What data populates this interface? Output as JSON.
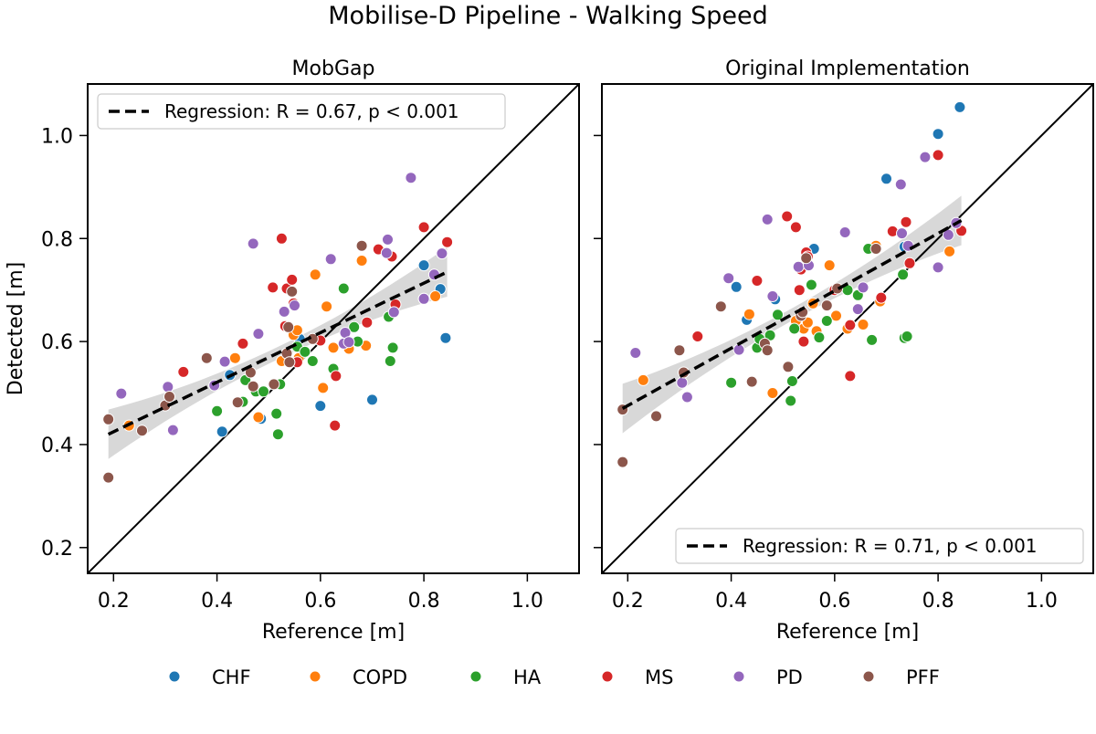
{
  "figure": {
    "title": "Mobilise-D Pipeline - Walking Speed"
  },
  "colors": {
    "CHF": "#1f77b4",
    "COPD": "#ff7f0e",
    "HA": "#2ca02c",
    "MS": "#d62728",
    "PD": "#9467bd",
    "PFF": "#8c564b"
  },
  "legend": {
    "placement": "bottom-center",
    "groups": [
      "CHF",
      "COPD",
      "HA",
      "MS",
      "PD",
      "PFF"
    ]
  },
  "chart_data": [
    {
      "type": "scatter",
      "title": "MobGap",
      "xlabel": "Reference [m]",
      "ylabel": "Detected [m]",
      "xlim": [
        0.15,
        1.1
      ],
      "ylim": [
        0.15,
        1.1
      ],
      "xticks": [
        "0.2",
        "0.4",
        "0.6",
        "0.8",
        "1.0"
      ],
      "yticks": [
        "0.2",
        "0.4",
        "0.6",
        "0.8",
        "1.0"
      ],
      "identity_line": true,
      "legend_placement": "top-left",
      "regression": {
        "label": "Regression: R = 0.67, p < 0.001",
        "x0": 0.19,
        "y0": 0.42,
        "x1": 0.845,
        "y1": 0.735
      },
      "points": [
        {
          "g": "CHF",
          "x": 0.41,
          "y": 0.425
        },
        {
          "g": "CHF",
          "x": 0.425,
          "y": 0.535
        },
        {
          "g": "CHF",
          "x": 0.485,
          "y": 0.45
        },
        {
          "g": "CHF",
          "x": 0.56,
          "y": 0.605
        },
        {
          "g": "CHF",
          "x": 0.6,
          "y": 0.475
        },
        {
          "g": "CHF",
          "x": 0.7,
          "y": 0.487
        },
        {
          "g": "CHF",
          "x": 0.8,
          "y": 0.748
        },
        {
          "g": "CHF",
          "x": 0.832,
          "y": 0.702
        },
        {
          "g": "CHF",
          "x": 0.842,
          "y": 0.607
        },
        {
          "g": "COPD",
          "x": 0.23,
          "y": 0.437
        },
        {
          "g": "COPD",
          "x": 0.435,
          "y": 0.568
        },
        {
          "g": "COPD",
          "x": 0.48,
          "y": 0.453
        },
        {
          "g": "COPD",
          "x": 0.525,
          "y": 0.562
        },
        {
          "g": "COPD",
          "x": 0.548,
          "y": 0.613
        },
        {
          "g": "COPD",
          "x": 0.555,
          "y": 0.622
        },
        {
          "g": "COPD",
          "x": 0.558,
          "y": 0.568
        },
        {
          "g": "COPD",
          "x": 0.59,
          "y": 0.73
        },
        {
          "g": "COPD",
          "x": 0.605,
          "y": 0.51
        },
        {
          "g": "COPD",
          "x": 0.612,
          "y": 0.668
        },
        {
          "g": "COPD",
          "x": 0.625,
          "y": 0.588
        },
        {
          "g": "COPD",
          "x": 0.655,
          "y": 0.586
        },
        {
          "g": "COPD",
          "x": 0.68,
          "y": 0.757
        },
        {
          "g": "COPD",
          "x": 0.688,
          "y": 0.592
        },
        {
          "g": "COPD",
          "x": 0.8,
          "y": 0.683
        },
        {
          "g": "COPD",
          "x": 0.822,
          "y": 0.688
        },
        {
          "g": "HA",
          "x": 0.4,
          "y": 0.465
        },
        {
          "g": "HA",
          "x": 0.45,
          "y": 0.483
        },
        {
          "g": "HA",
          "x": 0.455,
          "y": 0.525
        },
        {
          "g": "HA",
          "x": 0.475,
          "y": 0.503
        },
        {
          "g": "HA",
          "x": 0.49,
          "y": 0.503
        },
        {
          "g": "HA",
          "x": 0.515,
          "y": 0.46
        },
        {
          "g": "HA",
          "x": 0.518,
          "y": 0.42
        },
        {
          "g": "HA",
          "x": 0.522,
          "y": 0.517
        },
        {
          "g": "HA",
          "x": 0.555,
          "y": 0.59
        },
        {
          "g": "HA",
          "x": 0.57,
          "y": 0.58
        },
        {
          "g": "HA",
          "x": 0.585,
          "y": 0.562
        },
        {
          "g": "HA",
          "x": 0.625,
          "y": 0.547
        },
        {
          "g": "HA",
          "x": 0.645,
          "y": 0.703
        },
        {
          "g": "HA",
          "x": 0.665,
          "y": 0.628
        },
        {
          "g": "HA",
          "x": 0.672,
          "y": 0.6
        },
        {
          "g": "HA",
          "x": 0.732,
          "y": 0.648
        },
        {
          "g": "HA",
          "x": 0.735,
          "y": 0.562
        },
        {
          "g": "HA",
          "x": 0.74,
          "y": 0.588
        },
        {
          "g": "MS",
          "x": 0.335,
          "y": 0.541
        },
        {
          "g": "MS",
          "x": 0.45,
          "y": 0.596
        },
        {
          "g": "MS",
          "x": 0.508,
          "y": 0.705
        },
        {
          "g": "MS",
          "x": 0.525,
          "y": 0.8
        },
        {
          "g": "MS",
          "x": 0.532,
          "y": 0.63
        },
        {
          "g": "MS",
          "x": 0.535,
          "y": 0.703
        },
        {
          "g": "MS",
          "x": 0.545,
          "y": 0.72
        },
        {
          "g": "MS",
          "x": 0.548,
          "y": 0.674
        },
        {
          "g": "MS",
          "x": 0.555,
          "y": 0.56
        },
        {
          "g": "MS",
          "x": 0.6,
          "y": 0.602
        },
        {
          "g": "MS",
          "x": 0.63,
          "y": 0.533
        },
        {
          "g": "MS",
          "x": 0.628,
          "y": 0.437
        },
        {
          "g": "MS",
          "x": 0.69,
          "y": 0.637
        },
        {
          "g": "MS",
          "x": 0.712,
          "y": 0.779
        },
        {
          "g": "MS",
          "x": 0.738,
          "y": 0.765
        },
        {
          "g": "MS",
          "x": 0.745,
          "y": 0.672
        },
        {
          "g": "MS",
          "x": 0.8,
          "y": 0.822
        },
        {
          "g": "MS",
          "x": 0.845,
          "y": 0.793
        },
        {
          "g": "PD",
          "x": 0.215,
          "y": 0.499
        },
        {
          "g": "PD",
          "x": 0.305,
          "y": 0.512
        },
        {
          "g": "PD",
          "x": 0.315,
          "y": 0.428
        },
        {
          "g": "PD",
          "x": 0.395,
          "y": 0.515
        },
        {
          "g": "PD",
          "x": 0.415,
          "y": 0.561
        },
        {
          "g": "PD",
          "x": 0.47,
          "y": 0.79
        },
        {
          "g": "PD",
          "x": 0.48,
          "y": 0.615
        },
        {
          "g": "PD",
          "x": 0.53,
          "y": 0.658
        },
        {
          "g": "PD",
          "x": 0.55,
          "y": 0.67
        },
        {
          "g": "PD",
          "x": 0.62,
          "y": 0.76
        },
        {
          "g": "PD",
          "x": 0.645,
          "y": 0.596
        },
        {
          "g": "PD",
          "x": 0.648,
          "y": 0.617
        },
        {
          "g": "PD",
          "x": 0.655,
          "y": 0.599
        },
        {
          "g": "PD",
          "x": 0.728,
          "y": 0.772
        },
        {
          "g": "PD",
          "x": 0.73,
          "y": 0.798
        },
        {
          "g": "PD",
          "x": 0.742,
          "y": 0.657
        },
        {
          "g": "PD",
          "x": 0.775,
          "y": 0.918
        },
        {
          "g": "PD",
          "x": 0.8,
          "y": 0.683
        },
        {
          "g": "PD",
          "x": 0.82,
          "y": 0.73
        },
        {
          "g": "PD",
          "x": 0.835,
          "y": 0.771
        },
        {
          "g": "PFF",
          "x": 0.19,
          "y": 0.449
        },
        {
          "g": "PFF",
          "x": 0.19,
          "y": 0.336
        },
        {
          "g": "PFF",
          "x": 0.255,
          "y": 0.427
        },
        {
          "g": "PFF",
          "x": 0.3,
          "y": 0.476
        },
        {
          "g": "PFF",
          "x": 0.308,
          "y": 0.493
        },
        {
          "g": "PFF",
          "x": 0.38,
          "y": 0.568
        },
        {
          "g": "PFF",
          "x": 0.44,
          "y": 0.482
        },
        {
          "g": "PFF",
          "x": 0.465,
          "y": 0.54
        },
        {
          "g": "PFF",
          "x": 0.47,
          "y": 0.513
        },
        {
          "g": "PFF",
          "x": 0.51,
          "y": 0.517
        },
        {
          "g": "PFF",
          "x": 0.535,
          "y": 0.577
        },
        {
          "g": "PFF",
          "x": 0.538,
          "y": 0.628
        },
        {
          "g": "PFF",
          "x": 0.54,
          "y": 0.56
        },
        {
          "g": "PFF",
          "x": 0.545,
          "y": 0.697
        },
        {
          "g": "PFF",
          "x": 0.585,
          "y": 0.605
        },
        {
          "g": "PFF",
          "x": 0.68,
          "y": 0.786
        }
      ]
    },
    {
      "type": "scatter",
      "title": "Original Implementation",
      "xlabel": "Reference [m]",
      "ylabel": "",
      "xlim": [
        0.15,
        1.1
      ],
      "ylim": [
        0.15,
        1.1
      ],
      "xticks": [
        "0.2",
        "0.4",
        "0.6",
        "0.8",
        "1.0"
      ],
      "yticks": [],
      "identity_line": true,
      "legend_placement": "bottom-right",
      "regression": {
        "label": "Regression: R = 0.71, p < 0.001",
        "x0": 0.19,
        "y0": 0.47,
        "x1": 0.845,
        "y1": 0.835
      },
      "points": [
        {
          "g": "CHF",
          "x": 0.41,
          "y": 0.706
        },
        {
          "g": "CHF",
          "x": 0.43,
          "y": 0.642
        },
        {
          "g": "CHF",
          "x": 0.485,
          "y": 0.682
        },
        {
          "g": "CHF",
          "x": 0.56,
          "y": 0.78
        },
        {
          "g": "CHF",
          "x": 0.7,
          "y": 0.916
        },
        {
          "g": "CHF",
          "x": 0.735,
          "y": 0.784
        },
        {
          "g": "CHF",
          "x": 0.8,
          "y": 1.003
        },
        {
          "g": "CHF",
          "x": 0.842,
          "y": 1.055
        },
        {
          "g": "COPD",
          "x": 0.23,
          "y": 0.525
        },
        {
          "g": "COPD",
          "x": 0.435,
          "y": 0.653
        },
        {
          "g": "COPD",
          "x": 0.48,
          "y": 0.5
        },
        {
          "g": "COPD",
          "x": 0.525,
          "y": 0.64
        },
        {
          "g": "COPD",
          "x": 0.54,
          "y": 0.625
        },
        {
          "g": "COPD",
          "x": 0.548,
          "y": 0.637
        },
        {
          "g": "COPD",
          "x": 0.558,
          "y": 0.674
        },
        {
          "g": "COPD",
          "x": 0.565,
          "y": 0.62
        },
        {
          "g": "COPD",
          "x": 0.59,
          "y": 0.748
        },
        {
          "g": "COPD",
          "x": 0.603,
          "y": 0.65
        },
        {
          "g": "COPD",
          "x": 0.625,
          "y": 0.625
        },
        {
          "g": "COPD",
          "x": 0.655,
          "y": 0.633
        },
        {
          "g": "COPD",
          "x": 0.68,
          "y": 0.786
        },
        {
          "g": "COPD",
          "x": 0.688,
          "y": 0.678
        },
        {
          "g": "COPD",
          "x": 0.822,
          "y": 0.775
        },
        {
          "g": "HA",
          "x": 0.4,
          "y": 0.52
        },
        {
          "g": "HA",
          "x": 0.45,
          "y": 0.588
        },
        {
          "g": "HA",
          "x": 0.455,
          "y": 0.605
        },
        {
          "g": "HA",
          "x": 0.475,
          "y": 0.612
        },
        {
          "g": "HA",
          "x": 0.49,
          "y": 0.652
        },
        {
          "g": "HA",
          "x": 0.515,
          "y": 0.485
        },
        {
          "g": "HA",
          "x": 0.518,
          "y": 0.523
        },
        {
          "g": "HA",
          "x": 0.522,
          "y": 0.625
        },
        {
          "g": "HA",
          "x": 0.555,
          "y": 0.71
        },
        {
          "g": "HA",
          "x": 0.57,
          "y": 0.608
        },
        {
          "g": "HA",
          "x": 0.585,
          "y": 0.64
        },
        {
          "g": "HA",
          "x": 0.625,
          "y": 0.7
        },
        {
          "g": "HA",
          "x": 0.645,
          "y": 0.69
        },
        {
          "g": "HA",
          "x": 0.665,
          "y": 0.78
        },
        {
          "g": "HA",
          "x": 0.672,
          "y": 0.603
        },
        {
          "g": "HA",
          "x": 0.732,
          "y": 0.73
        },
        {
          "g": "HA",
          "x": 0.735,
          "y": 0.607
        },
        {
          "g": "HA",
          "x": 0.74,
          "y": 0.61
        },
        {
          "g": "MS",
          "x": 0.335,
          "y": 0.61
        },
        {
          "g": "MS",
          "x": 0.45,
          "y": 0.718
        },
        {
          "g": "MS",
          "x": 0.508,
          "y": 0.843
        },
        {
          "g": "MS",
          "x": 0.525,
          "y": 0.822
        },
        {
          "g": "MS",
          "x": 0.532,
          "y": 0.7
        },
        {
          "g": "MS",
          "x": 0.535,
          "y": 0.74
        },
        {
          "g": "MS",
          "x": 0.545,
          "y": 0.773
        },
        {
          "g": "MS",
          "x": 0.548,
          "y": 0.765
        },
        {
          "g": "MS",
          "x": 0.54,
          "y": 0.6
        },
        {
          "g": "MS",
          "x": 0.6,
          "y": 0.7
        },
        {
          "g": "MS",
          "x": 0.63,
          "y": 0.533
        },
        {
          "g": "MS",
          "x": 0.63,
          "y": 0.632
        },
        {
          "g": "MS",
          "x": 0.69,
          "y": 0.685
        },
        {
          "g": "MS",
          "x": 0.712,
          "y": 0.814
        },
        {
          "g": "MS",
          "x": 0.738,
          "y": 0.832
        },
        {
          "g": "MS",
          "x": 0.745,
          "y": 0.752
        },
        {
          "g": "MS",
          "x": 0.8,
          "y": 0.962
        },
        {
          "g": "MS",
          "x": 0.845,
          "y": 0.815
        },
        {
          "g": "PD",
          "x": 0.215,
          "y": 0.578
        },
        {
          "g": "PD",
          "x": 0.305,
          "y": 0.52
        },
        {
          "g": "PD",
          "x": 0.315,
          "y": 0.492
        },
        {
          "g": "PD",
          "x": 0.395,
          "y": 0.723
        },
        {
          "g": "PD",
          "x": 0.415,
          "y": 0.584
        },
        {
          "g": "PD",
          "x": 0.47,
          "y": 0.837
        },
        {
          "g": "PD",
          "x": 0.48,
          "y": 0.688
        },
        {
          "g": "PD",
          "x": 0.53,
          "y": 0.745
        },
        {
          "g": "PD",
          "x": 0.55,
          "y": 0.748
        },
        {
          "g": "PD",
          "x": 0.62,
          "y": 0.812
        },
        {
          "g": "PD",
          "x": 0.645,
          "y": 0.663
        },
        {
          "g": "PD",
          "x": 0.655,
          "y": 0.705
        },
        {
          "g": "PD",
          "x": 0.728,
          "y": 0.905
        },
        {
          "g": "PD",
          "x": 0.73,
          "y": 0.81
        },
        {
          "g": "PD",
          "x": 0.742,
          "y": 0.786
        },
        {
          "g": "PD",
          "x": 0.775,
          "y": 0.958
        },
        {
          "g": "PD",
          "x": 0.8,
          "y": 0.744
        },
        {
          "g": "PD",
          "x": 0.82,
          "y": 0.807
        },
        {
          "g": "PD",
          "x": 0.835,
          "y": 0.83
        },
        {
          "g": "PFF",
          "x": 0.19,
          "y": 0.468
        },
        {
          "g": "PFF",
          "x": 0.19,
          "y": 0.366
        },
        {
          "g": "PFF",
          "x": 0.255,
          "y": 0.455
        },
        {
          "g": "PFF",
          "x": 0.3,
          "y": 0.583
        },
        {
          "g": "PFF",
          "x": 0.308,
          "y": 0.54
        },
        {
          "g": "PFF",
          "x": 0.38,
          "y": 0.668
        },
        {
          "g": "PFF",
          "x": 0.44,
          "y": 0.522
        },
        {
          "g": "PFF",
          "x": 0.465,
          "y": 0.596
        },
        {
          "g": "PFF",
          "x": 0.47,
          "y": 0.583
        },
        {
          "g": "PFF",
          "x": 0.51,
          "y": 0.551
        },
        {
          "g": "PFF",
          "x": 0.535,
          "y": 0.65
        },
        {
          "g": "PFF",
          "x": 0.538,
          "y": 0.657
        },
        {
          "g": "PFF",
          "x": 0.545,
          "y": 0.762
        },
        {
          "g": "PFF",
          "x": 0.585,
          "y": 0.67
        },
        {
          "g": "PFF",
          "x": 0.605,
          "y": 0.703
        },
        {
          "g": "PFF",
          "x": 0.68,
          "y": 0.78
        }
      ]
    }
  ]
}
